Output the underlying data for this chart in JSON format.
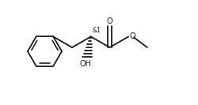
{
  "background_color": "#ffffff",
  "line_color": "#1a1a1a",
  "line_width": 1.3,
  "figsize": [
    2.5,
    1.33
  ],
  "dpi": 100,
  "chiral_label": "&1",
  "chiral_label_fontsize": 5.5,
  "oh_label": "OH",
  "oh_fontsize": 7.0,
  "o_label": "O",
  "o_fontsize": 7.0,
  "ome_o_label": "O",
  "ome_o_fontsize": 7.0
}
